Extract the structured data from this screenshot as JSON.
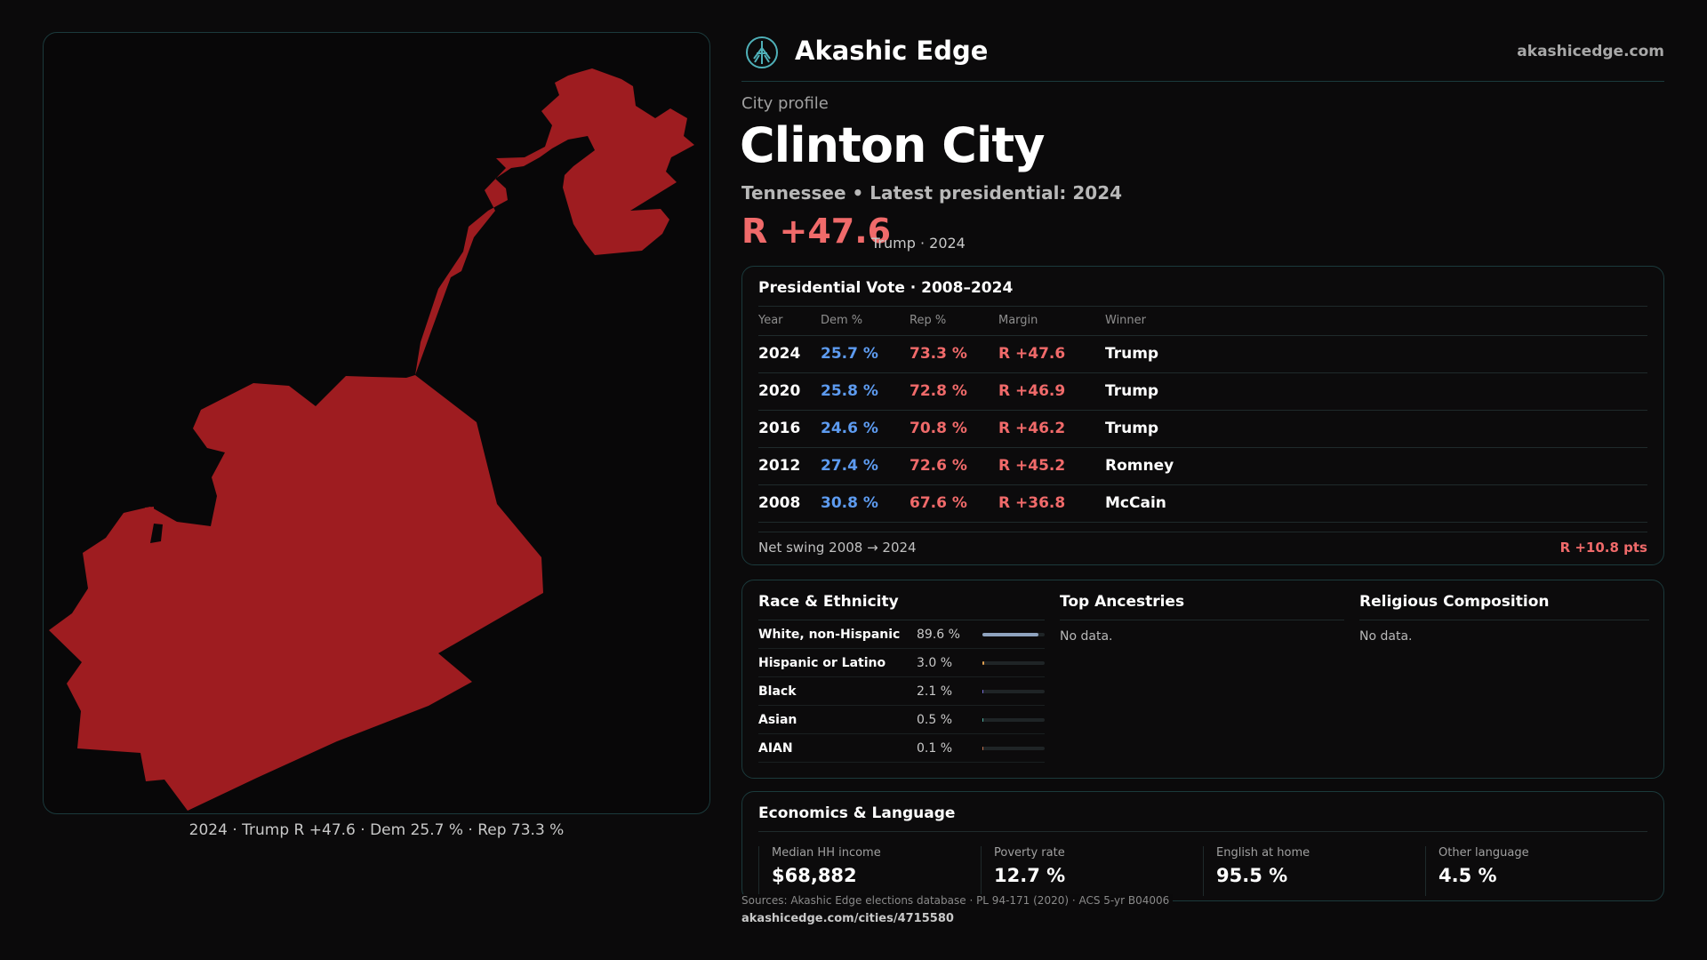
{
  "header": {
    "brand": "Akashic Edge",
    "site": "akashicedge.com"
  },
  "profile": {
    "label": "City profile",
    "city": "Clinton City",
    "subtitle": "Tennessee • Latest presidential: 2024",
    "margin": "R +47.6",
    "margin_note": "Trump · 2024"
  },
  "map": {
    "caption": "2024 · Trump R +47.6 · Dem 25.7 % · Rep 73.3 %",
    "fill_color": "#9e1c20"
  },
  "presidential": {
    "title": "Presidential Vote · 2008–2024",
    "columns": [
      "Year",
      "Dem %",
      "Rep %",
      "Margin",
      "Winner"
    ],
    "rows": [
      {
        "year": "2024",
        "dem": "25.7 %",
        "rep": "73.3 %",
        "margin": "R +47.6",
        "winner": "Trump"
      },
      {
        "year": "2020",
        "dem": "25.8 %",
        "rep": "72.8 %",
        "margin": "R +46.9",
        "winner": "Trump"
      },
      {
        "year": "2016",
        "dem": "24.6 %",
        "rep": "70.8 %",
        "margin": "R +46.2",
        "winner": "Trump"
      },
      {
        "year": "2012",
        "dem": "27.4 %",
        "rep": "72.6 %",
        "margin": "R +45.2",
        "winner": "Romney"
      },
      {
        "year": "2008",
        "dem": "30.8 %",
        "rep": "67.6 %",
        "margin": "R +36.8",
        "winner": "McCain"
      }
    ],
    "swing_label": "Net swing 2008 → 2024",
    "swing_value": "R +10.8 pts"
  },
  "race": {
    "title": "Race & Ethnicity",
    "items": [
      {
        "name": "White, non-Hispanic",
        "pct": "89.6 %",
        "value": 89.6,
        "color": "#8fa3bf"
      },
      {
        "name": "Hispanic or Latino",
        "pct": "3.0 %",
        "value": 3.0,
        "color": "#e0a050"
      },
      {
        "name": "Black",
        "pct": "2.1 %",
        "value": 2.1,
        "color": "#7a6fd8"
      },
      {
        "name": "Asian",
        "pct": "0.5 %",
        "value": 0.5,
        "color": "#4fb0a0"
      },
      {
        "name": "AIAN",
        "pct": "0.1 %",
        "value": 0.1,
        "color": "#c07050"
      }
    ]
  },
  "ancestries": {
    "title": "Top Ancestries",
    "empty": "No data."
  },
  "religion": {
    "title": "Religious Composition",
    "empty": "No data."
  },
  "economics": {
    "title": "Economics & Language",
    "stats": [
      {
        "label": "Median HH income",
        "value": "$68,882"
      },
      {
        "label": "Poverty rate",
        "value": "12.7 %"
      },
      {
        "label": "English at home",
        "value": "95.5 %"
      },
      {
        "label": "Other language",
        "value": "4.5 %"
      }
    ]
  },
  "footer": {
    "sources": "Sources: Akashic Edge elections database · PL 94-171 (2020) · ACS 5-yr B04006",
    "url": "akashicedge.com/cities/4715580"
  }
}
